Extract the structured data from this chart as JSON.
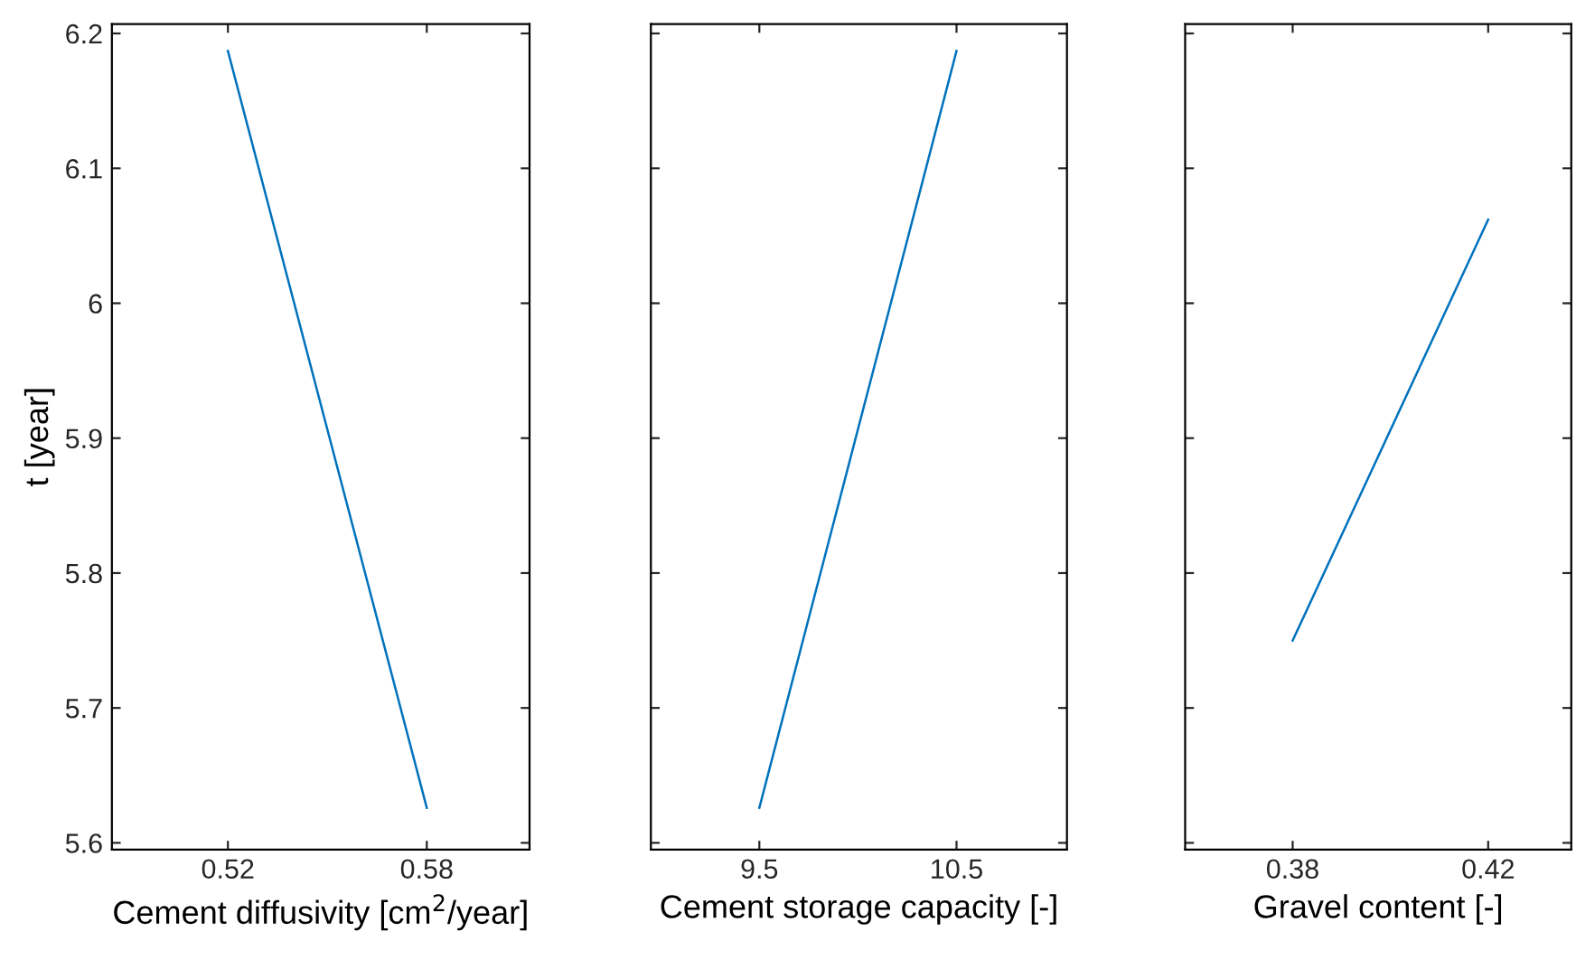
{
  "chart_data": [
    {
      "type": "line",
      "x": [
        0.52,
        0.58
      ],
      "values": [
        6.187,
        5.626
      ],
      "color": "#0072bd",
      "xlim": [
        0.485,
        0.611
      ],
      "xticks": [
        0.52,
        0.58
      ],
      "ylim": [
        5.595,
        6.207
      ],
      "yticks": [
        5.6,
        5.7,
        5.8,
        5.9,
        6,
        6.1,
        6.2
      ],
      "xlabel": "Cement diffusivity [cm$^{2}$/year]",
      "ylabel": "t [year]",
      "grid": false
    },
    {
      "type": "line",
      "x": [
        9.5,
        10.5
      ],
      "values": [
        5.626,
        6.187
      ],
      "color": "#0072bd",
      "xlim": [
        8.95,
        11.06
      ],
      "xticks": [
        9.5,
        10.5
      ],
      "ylim": [
        5.595,
        6.207
      ],
      "yticks": [
        5.6,
        5.7,
        5.8,
        5.9,
        6,
        6.1,
        6.2
      ],
      "xlabel": "Cement storage capacity [-]",
      "tick_labels": "x",
      "grid": false
    },
    {
      "type": "line",
      "x": [
        0.38,
        0.42
      ],
      "values": [
        5.75,
        6.062
      ],
      "color": "#0072bd",
      "xlim": [
        0.358,
        0.437
      ],
      "xticks": [
        0.38,
        0.42
      ],
      "ylim": [
        5.595,
        6.207
      ],
      "yticks": [
        5.6,
        5.7,
        5.8,
        5.9,
        6,
        6.1,
        6.2
      ],
      "xlabel": "Gravel content [-]",
      "tick_labels": "x",
      "grid": false
    }
  ]
}
